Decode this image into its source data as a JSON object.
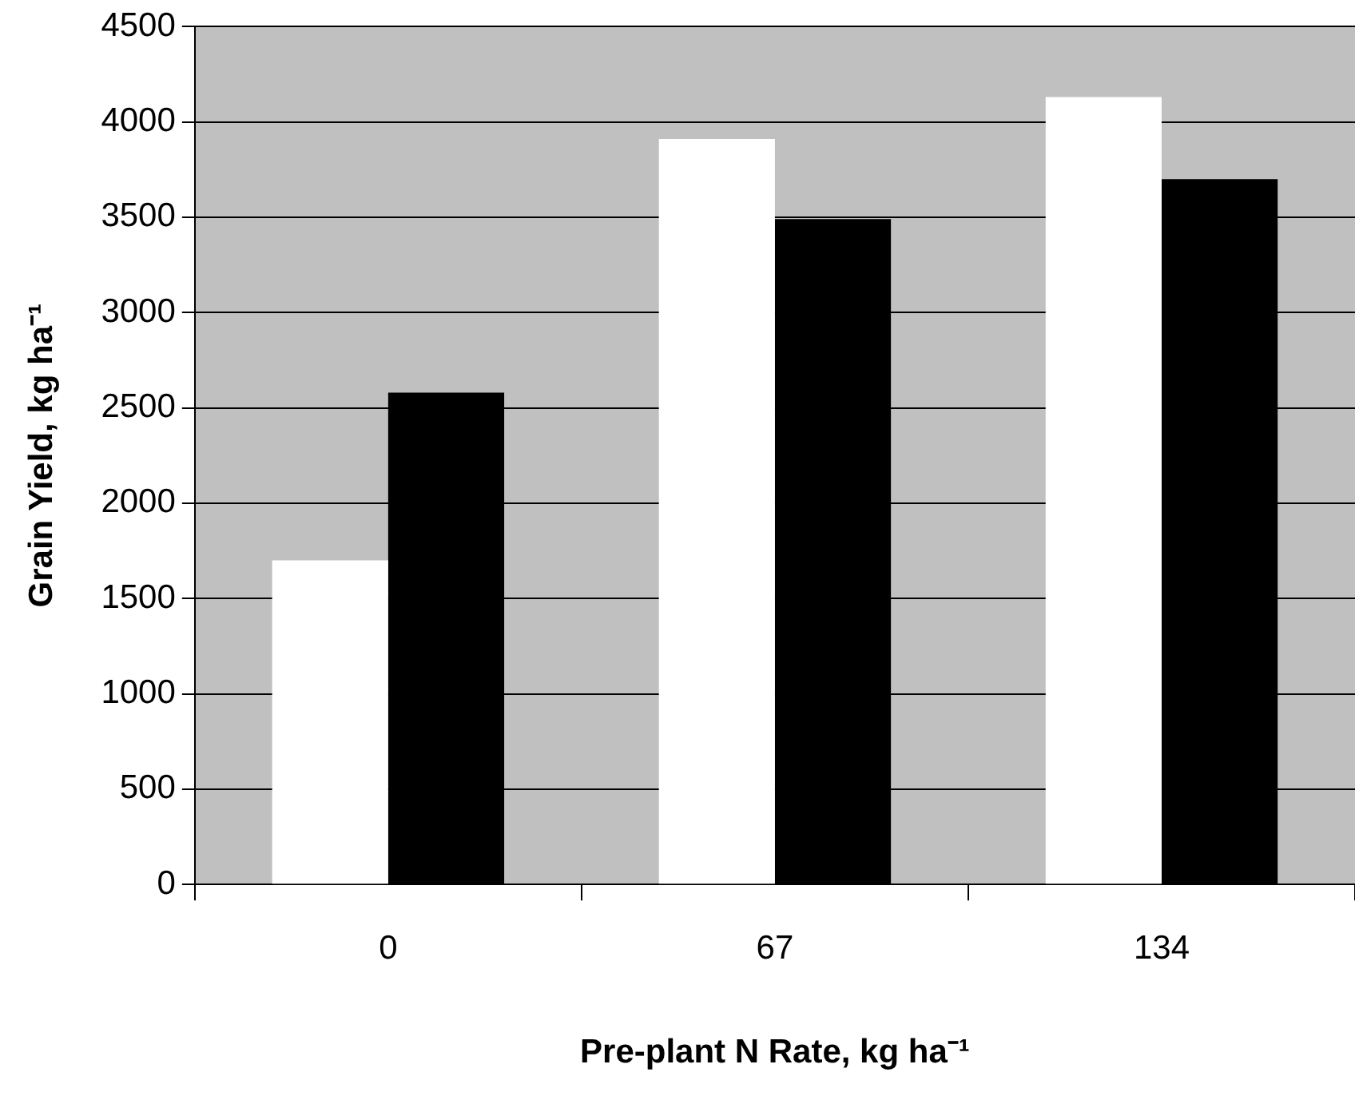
{
  "chart_data": {
    "type": "bar",
    "xlabel": "Pre-plant N Rate, kg ha⁻¹",
    "ylabel": "Grain Yield, kg ha⁻¹",
    "categories": [
      "0",
      "67",
      "134"
    ],
    "series": [
      {
        "color": "#ffffff",
        "values": [
          1700,
          3910,
          4130
        ]
      },
      {
        "color": "#000000",
        "values": [
          2580,
          3490,
          3700
        ]
      }
    ],
    "ylim": [
      0,
      4500
    ],
    "yticks": [
      0,
      500,
      1000,
      1500,
      2000,
      2500,
      3000,
      3500,
      4000,
      4500
    ],
    "grid": "y",
    "legend": false
  }
}
